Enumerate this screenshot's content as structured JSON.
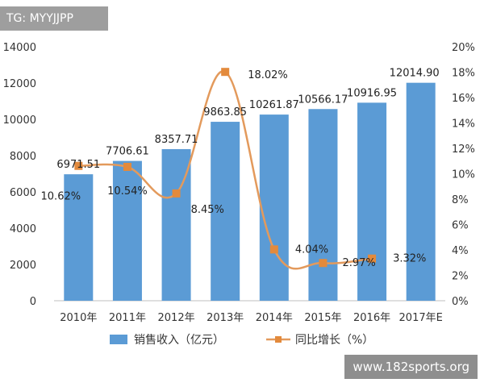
{
  "watermark_top": "TG: MYYJJPP",
  "watermark_bottom": "www.182sports.org",
  "chart_data": {
    "type": "bar",
    "categories": [
      "2010年",
      "2011年",
      "2012年",
      "2013年",
      "2014年",
      "2015年",
      "2016年",
      "2017年E"
    ],
    "series": [
      {
        "name": "销售收入（亿元）",
        "type": "bar",
        "axis": "left",
        "values": [
          6971.51,
          7706.61,
          8357.71,
          9863.85,
          10261.87,
          10566.17,
          10916.95,
          12014.9
        ],
        "labels": [
          "6971.51",
          "7706.61",
          "8357.71",
          "9863.85",
          "10261.87",
          "10566.17",
          "10916.95",
          "12014.90"
        ]
      },
      {
        "name": "同比增长（%）",
        "type": "line",
        "axis": "right",
        "values": [
          10.62,
          10.54,
          8.45,
          18.02,
          4.04,
          2.97,
          3.32,
          null
        ],
        "labels": [
          "10.62%",
          "10.54%",
          "8.45%",
          "18.02%",
          "4.04%",
          "2.97%",
          "3.32%",
          ""
        ]
      }
    ],
    "y_left": {
      "min": 0,
      "max": 14000,
      "step": 2000,
      "ticks": [
        "0",
        "2000",
        "4000",
        "6000",
        "8000",
        "10000",
        "12000",
        "14000"
      ]
    },
    "y_right": {
      "min": 0,
      "max": 20,
      "step": 2,
      "ticks": [
        "0%",
        "2%",
        "4%",
        "6%",
        "8%",
        "10%",
        "12%",
        "14%",
        "16%",
        "18%",
        "20%"
      ]
    },
    "legend_position": "bottom",
    "grid": false,
    "colors": {
      "bar": "#5B9BD5",
      "line": "#E39A5C",
      "marker": "#E38A3C"
    }
  }
}
